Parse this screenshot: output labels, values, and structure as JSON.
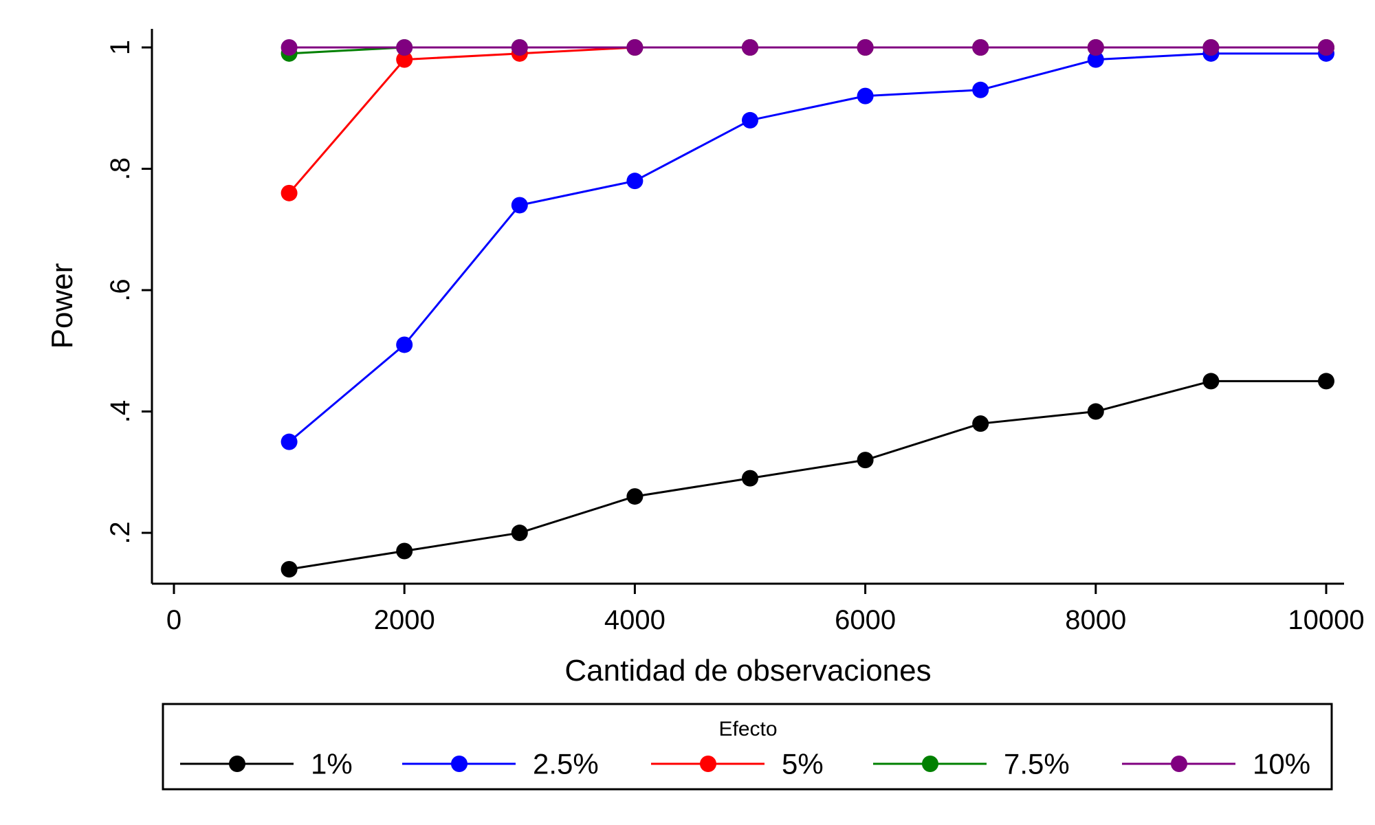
{
  "chart_data": {
    "type": "line",
    "title": "",
    "xlabel": "Cantidad de observaciones",
    "ylabel": "Power",
    "xlim": [
      0,
      10000
    ],
    "ylim": [
      0.11,
      1.0
    ],
    "xticks": [
      0,
      2000,
      4000,
      6000,
      8000,
      10000
    ],
    "xtick_labels": [
      "0",
      "2000",
      "4000",
      "6000",
      "8000",
      "10000"
    ],
    "yticks": [
      0.2,
      0.4,
      0.6,
      0.8,
      1.0
    ],
    "ytick_labels": [
      ".2",
      ".4",
      ".6",
      ".8",
      "1"
    ],
    "grid": false,
    "legend": {
      "title": "Efecto",
      "placement": "bottom"
    },
    "x": [
      1000,
      2000,
      3000,
      4000,
      5000,
      6000,
      7000,
      8000,
      9000,
      10000
    ],
    "series": [
      {
        "name": "1%",
        "color": "#000000",
        "values": [
          0.14,
          0.17,
          0.2,
          0.26,
          0.29,
          0.32,
          0.38,
          0.4,
          0.45,
          0.45
        ]
      },
      {
        "name": "2.5%",
        "color": "#0000ff",
        "values": [
          0.35,
          0.51,
          0.74,
          0.78,
          0.88,
          0.92,
          0.93,
          0.98,
          0.99,
          0.99
        ]
      },
      {
        "name": "5%",
        "color": "#ff0000",
        "values": [
          0.76,
          0.98,
          0.99,
          1.0,
          1.0,
          1.0,
          1.0,
          1.0,
          1.0,
          1.0
        ]
      },
      {
        "name": "7.5%",
        "color": "#008000",
        "values": [
          0.99,
          1.0,
          1.0,
          1.0,
          1.0,
          1.0,
          1.0,
          1.0,
          1.0,
          1.0
        ]
      },
      {
        "name": "10%",
        "color": "#800080",
        "values": [
          1.0,
          1.0,
          1.0,
          1.0,
          1.0,
          1.0,
          1.0,
          1.0,
          1.0,
          1.0
        ]
      }
    ]
  }
}
